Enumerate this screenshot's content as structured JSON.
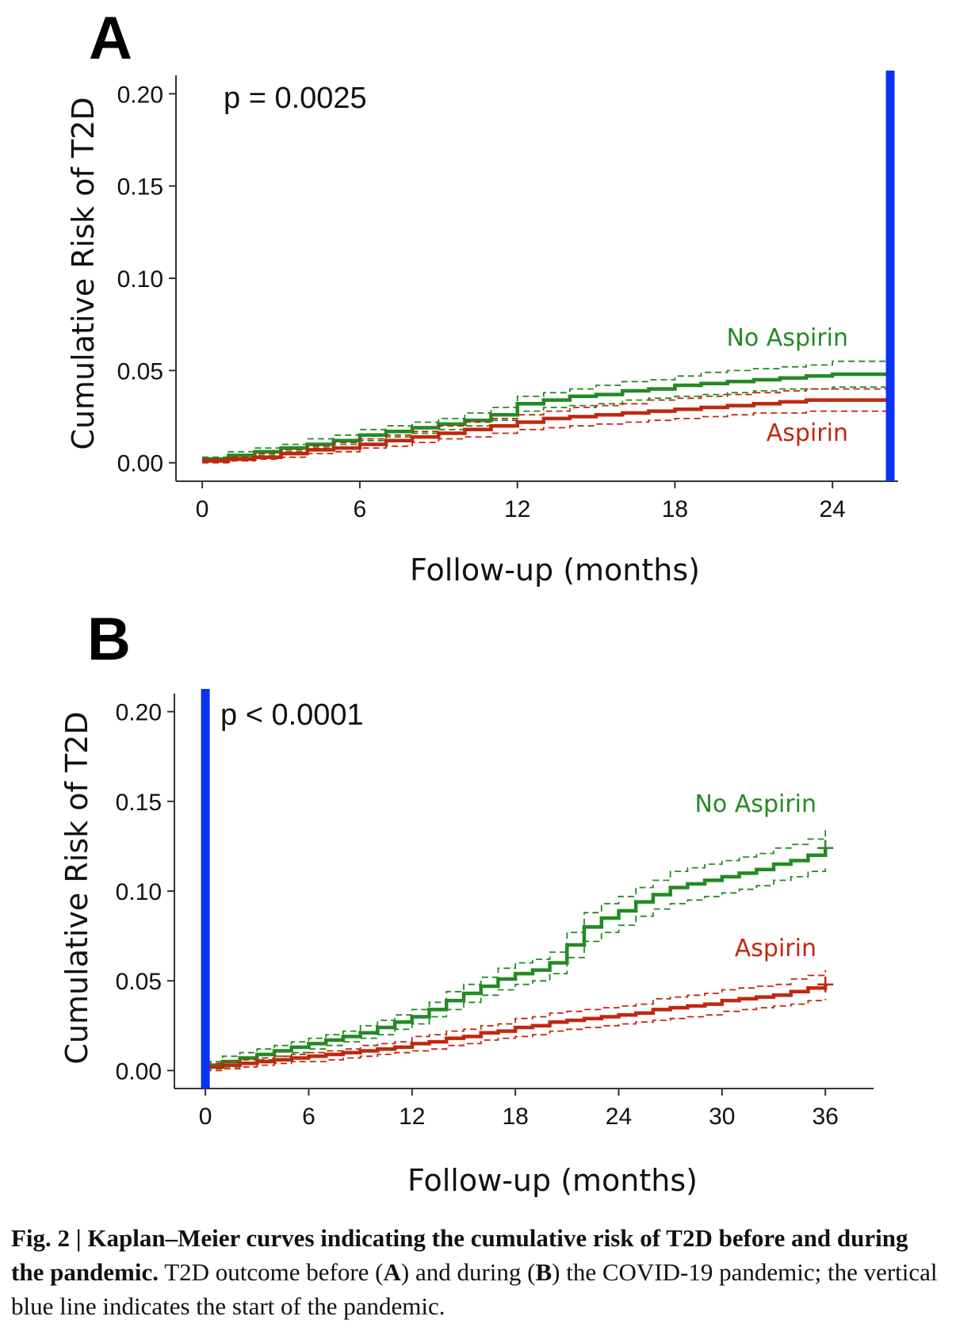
{
  "chart_data": [
    {
      "panel": "A",
      "type": "line",
      "subtype": "kaplan-meier step",
      "annotation": "p = 0.0025",
      "xlabel": "Follow-up (months)",
      "ylabel": "Cumulative Risk of T2D",
      "xlim": [
        -1,
        26.5
      ],
      "ylim": [
        -0.01,
        0.21
      ],
      "x_ticks": [
        0,
        6,
        12,
        18,
        24
      ],
      "x_tick_labels": [
        "0",
        "6",
        "12",
        "18",
        "24"
      ],
      "y_ticks": [
        0,
        0.05,
        0.1,
        0.15,
        0.2
      ],
      "y_tick_labels": [
        "0.00",
        "0.05",
        "0.10",
        "0.15",
        "0.20"
      ],
      "pandemic_line_x": 26.2,
      "grid": false,
      "series": [
        {
          "name": "No Aspirin",
          "color": "#238a23",
          "ci_color": "#238a23",
          "x": [
            0,
            1,
            2,
            3,
            4,
            5,
            6,
            7,
            8,
            9,
            10,
            11,
            12,
            13,
            14,
            15,
            16,
            17,
            18,
            19,
            20,
            21,
            22,
            23,
            24,
            26.2
          ],
          "y": [
            0.002,
            0.004,
            0.006,
            0.008,
            0.01,
            0.012,
            0.015,
            0.017,
            0.019,
            0.021,
            0.023,
            0.026,
            0.032,
            0.034,
            0.036,
            0.037,
            0.039,
            0.04,
            0.042,
            0.043,
            0.044,
            0.045,
            0.046,
            0.047,
            0.048,
            0.048
          ],
          "ci_low": [
            0.001,
            0.002,
            0.004,
            0.006,
            0.008,
            0.01,
            0.012,
            0.014,
            0.016,
            0.018,
            0.02,
            0.023,
            0.028,
            0.03,
            0.031,
            0.032,
            0.034,
            0.035,
            0.036,
            0.037,
            0.038,
            0.039,
            0.04,
            0.04,
            0.041,
            0.041
          ],
          "ci_high": [
            0.003,
            0.006,
            0.008,
            0.01,
            0.013,
            0.015,
            0.018,
            0.02,
            0.022,
            0.024,
            0.027,
            0.03,
            0.036,
            0.038,
            0.04,
            0.042,
            0.044,
            0.045,
            0.047,
            0.049,
            0.05,
            0.051,
            0.052,
            0.053,
            0.055,
            0.055
          ]
        },
        {
          "name": "Aspirin",
          "color": "#c0280f",
          "ci_color": "#c0280f",
          "x": [
            0,
            1,
            2,
            3,
            4,
            5,
            6,
            7,
            8,
            9,
            10,
            11,
            12,
            13,
            14,
            15,
            16,
            17,
            18,
            19,
            20,
            21,
            22,
            23,
            24,
            26.2
          ],
          "y": [
            0.001,
            0.002,
            0.003,
            0.005,
            0.007,
            0.008,
            0.01,
            0.012,
            0.014,
            0.016,
            0.018,
            0.02,
            0.022,
            0.024,
            0.025,
            0.026,
            0.027,
            0.028,
            0.029,
            0.03,
            0.031,
            0.032,
            0.033,
            0.034,
            0.034,
            0.034
          ],
          "ci_low": [
            0.0,
            0.001,
            0.002,
            0.003,
            0.005,
            0.006,
            0.008,
            0.009,
            0.011,
            0.013,
            0.014,
            0.016,
            0.018,
            0.019,
            0.02,
            0.021,
            0.022,
            0.023,
            0.024,
            0.025,
            0.026,
            0.027,
            0.027,
            0.028,
            0.028,
            0.028
          ],
          "ci_high": [
            0.002,
            0.003,
            0.005,
            0.007,
            0.009,
            0.011,
            0.013,
            0.015,
            0.017,
            0.02,
            0.022,
            0.024,
            0.026,
            0.028,
            0.03,
            0.031,
            0.032,
            0.034,
            0.035,
            0.036,
            0.037,
            0.038,
            0.039,
            0.04,
            0.04,
            0.04
          ]
        }
      ]
    },
    {
      "panel": "B",
      "type": "line",
      "subtype": "kaplan-meier step",
      "annotation": "p < 0.0001",
      "xlabel": "Follow-up (months)",
      "ylabel": "Cumulative Risk of T2D",
      "xlim": [
        -1.8,
        38.8
      ],
      "ylim": [
        -0.01,
        0.21
      ],
      "x_ticks": [
        0,
        6,
        12,
        18,
        24,
        30,
        36
      ],
      "x_tick_labels": [
        "0",
        "6",
        "12",
        "18",
        "24",
        "30",
        "36"
      ],
      "y_ticks": [
        0,
        0.05,
        0.1,
        0.15,
        0.2
      ],
      "y_tick_labels": [
        "0.00",
        "0.05",
        "0.10",
        "0.15",
        "0.20"
      ],
      "pandemic_line_x": 0,
      "grid": false,
      "series": [
        {
          "name": "No Aspirin",
          "color": "#238a23",
          "ci_color": "#238a23",
          "censored_at": 36,
          "x": [
            0,
            1,
            2,
            3,
            4,
            5,
            6,
            7,
            8,
            9,
            10,
            11,
            12,
            13,
            14,
            15,
            16,
            17,
            18,
            19,
            20,
            21,
            22,
            23,
            24,
            25,
            26,
            27,
            28,
            29,
            30,
            31,
            32,
            33,
            34,
            35,
            36
          ],
          "y": [
            0.003,
            0.005,
            0.007,
            0.009,
            0.011,
            0.013,
            0.015,
            0.017,
            0.019,
            0.021,
            0.024,
            0.027,
            0.03,
            0.034,
            0.039,
            0.043,
            0.047,
            0.051,
            0.054,
            0.056,
            0.06,
            0.07,
            0.08,
            0.085,
            0.089,
            0.094,
            0.098,
            0.102,
            0.104,
            0.106,
            0.108,
            0.11,
            0.112,
            0.115,
            0.117,
            0.12,
            0.124
          ],
          "ci_low": [
            0.001,
            0.002,
            0.004,
            0.006,
            0.008,
            0.01,
            0.012,
            0.014,
            0.016,
            0.018,
            0.02,
            0.023,
            0.026,
            0.03,
            0.034,
            0.038,
            0.042,
            0.045,
            0.048,
            0.05,
            0.054,
            0.063,
            0.072,
            0.077,
            0.081,
            0.086,
            0.09,
            0.093,
            0.095,
            0.097,
            0.099,
            0.101,
            0.103,
            0.106,
            0.108,
            0.111,
            0.114
          ],
          "ci_high": [
            0.005,
            0.008,
            0.01,
            0.012,
            0.014,
            0.016,
            0.018,
            0.02,
            0.022,
            0.025,
            0.028,
            0.031,
            0.034,
            0.038,
            0.044,
            0.048,
            0.052,
            0.057,
            0.06,
            0.062,
            0.066,
            0.077,
            0.088,
            0.093,
            0.097,
            0.102,
            0.106,
            0.111,
            0.113,
            0.115,
            0.117,
            0.119,
            0.121,
            0.124,
            0.126,
            0.129,
            0.134
          ]
        },
        {
          "name": "Aspirin",
          "color": "#c0280f",
          "ci_color": "#c0280f",
          "censored_at": 36,
          "x": [
            0,
            1,
            2,
            3,
            4,
            5,
            6,
            7,
            8,
            9,
            10,
            11,
            12,
            13,
            14,
            15,
            16,
            17,
            18,
            19,
            20,
            21,
            22,
            23,
            24,
            25,
            26,
            27,
            28,
            29,
            30,
            31,
            32,
            33,
            34,
            35,
            36
          ],
          "y": [
            0.002,
            0.003,
            0.004,
            0.005,
            0.006,
            0.007,
            0.008,
            0.009,
            0.01,
            0.011,
            0.012,
            0.013,
            0.015,
            0.016,
            0.018,
            0.019,
            0.021,
            0.022,
            0.024,
            0.025,
            0.027,
            0.028,
            0.029,
            0.03,
            0.031,
            0.032,
            0.034,
            0.035,
            0.036,
            0.037,
            0.039,
            0.04,
            0.041,
            0.042,
            0.044,
            0.046,
            0.048
          ],
          "ci_low": [
            0.0,
            0.001,
            0.002,
            0.003,
            0.004,
            0.005,
            0.005,
            0.006,
            0.007,
            0.008,
            0.009,
            0.01,
            0.011,
            0.012,
            0.014,
            0.015,
            0.017,
            0.018,
            0.019,
            0.02,
            0.022,
            0.023,
            0.024,
            0.025,
            0.026,
            0.027,
            0.028,
            0.029,
            0.03,
            0.031,
            0.033,
            0.034,
            0.035,
            0.036,
            0.037,
            0.039,
            0.04
          ],
          "ci_high": [
            0.004,
            0.005,
            0.006,
            0.007,
            0.008,
            0.009,
            0.01,
            0.011,
            0.012,
            0.014,
            0.015,
            0.016,
            0.019,
            0.02,
            0.022,
            0.023,
            0.025,
            0.026,
            0.029,
            0.03,
            0.032,
            0.033,
            0.034,
            0.035,
            0.036,
            0.037,
            0.04,
            0.041,
            0.042,
            0.043,
            0.045,
            0.046,
            0.047,
            0.048,
            0.051,
            0.053,
            0.056
          ]
        }
      ]
    }
  ],
  "colors": {
    "no_aspirin": "#238a23",
    "aspirin": "#c0280f",
    "pandemic_line": "#0a32f0",
    "axis": "#333333"
  },
  "caption": {
    "fig_label": "Fig. 2 | Kaplan–Meier curves indicating the cumulative risk of T2D before and during the pandemic.",
    "body": " T2D outcome before (",
    "bold_a": "A",
    "body_2": ") and during (",
    "bold_b": "B",
    "body_3": ") the COVID-19 pandemic; the vertical blue line indicates the start of the pandemic."
  }
}
